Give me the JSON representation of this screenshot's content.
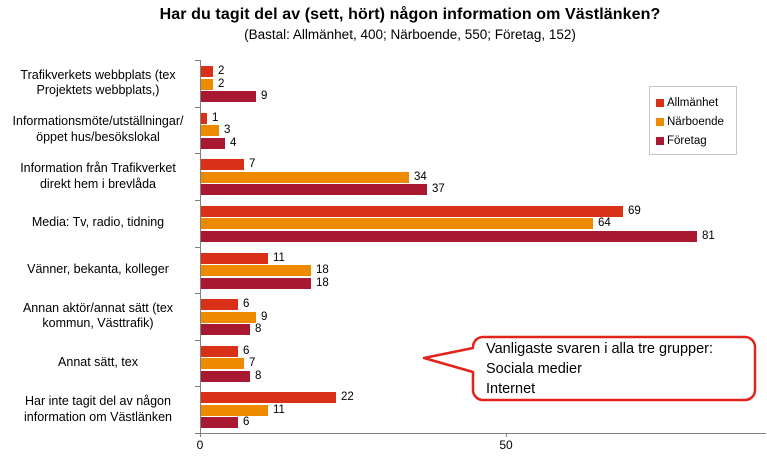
{
  "header": {
    "title": "Har du tagit del av (sett, hört) någon information om Västlänken?",
    "subtitle": "(Bastal: Allmänhet, 400; Närboende, 550; Företag, 152)"
  },
  "chart_data": {
    "type": "bar",
    "orientation": "horizontal",
    "title": "Har du tagit del av (sett, hört) någon information om Västlänken?",
    "subtitle": "(Bastal: Allmänhet, 400; Närboende, 550; Företag, 152)",
    "categories": [
      "Trafikverkets webbplats (tex\nProjektets webbplats,)",
      "Informationsmöte/utställningar/\nöppet hus/besökslokal",
      "Information från Trafikverket\ndirekt hem i brevlåda",
      "Media: Tv, radio, tidning",
      "Vänner, bekanta, kolleger",
      "Annan aktör/annat sätt (tex\nkommun, Västtrafik)",
      "Annat sätt, tex",
      "Har inte tagit del av någon\ninformation om Västlänken"
    ],
    "series": [
      {
        "name": "Allmänhet",
        "color": "#D93018",
        "values": [
          2,
          1,
          7,
          69,
          11,
          6,
          6,
          22
        ]
      },
      {
        "name": "Närboende",
        "color": "#EE8A00",
        "values": [
          2,
          3,
          34,
          64,
          18,
          9,
          7,
          11
        ]
      },
      {
        "name": "Företag",
        "color": "#A81931",
        "values": [
          9,
          4,
          37,
          81,
          18,
          8,
          8,
          6
        ]
      }
    ],
    "value_labels": true,
    "xticks": [
      0,
      50
    ],
    "xlim": [
      0,
      92.5
    ],
    "grid": false,
    "legend_position": "right",
    "axis_color": "#808080"
  },
  "legend": {
    "items": [
      {
        "label": "Allmänhet",
        "color": "#D93018"
      },
      {
        "label": "Närboende",
        "color": "#EE8A00"
      },
      {
        "label": "Företag",
        "color": "#A81931"
      }
    ]
  },
  "callout": {
    "text": "Vanligaste svaren i alla tre grupper:\nSociala medier\nInternet",
    "border_color": "#E3241B"
  }
}
